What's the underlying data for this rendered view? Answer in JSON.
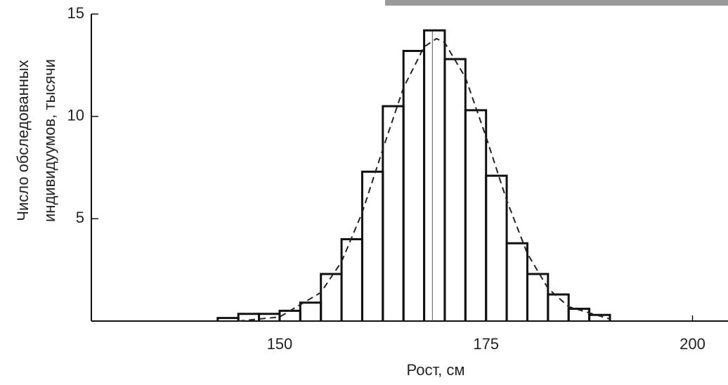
{
  "chart_data": {
    "type": "histogram",
    "x_label": "Рост, см",
    "y_label": [
      "Число обследованных",
      "индивидуумов, тысячи"
    ],
    "bins": [
      142.5,
      145,
      147.5,
      150,
      152.5,
      155,
      157.5,
      160,
      162.5,
      165,
      167.5,
      170,
      172.5,
      175,
      177.5,
      180,
      182.5,
      185,
      187.5,
      190
    ],
    "values": [
      0.15,
      0.35,
      0.35,
      0.5,
      0.9,
      2.3,
      4.0,
      7.3,
      10.5,
      13.2,
      14.2,
      12.8,
      10.3,
      7.1,
      3.8,
      2.3,
      1.3,
      0.6,
      0.3
    ],
    "color": "#111111",
    "curve": {
      "x": [
        145,
        150,
        155,
        157.5,
        160,
        162.5,
        165,
        167.5,
        169,
        170,
        172.5,
        175,
        177.5,
        180,
        182.5,
        185,
        190
      ],
      "values": [
        0.0,
        0.2,
        1.4,
        2.9,
        5.3,
        8.4,
        11.4,
        13.4,
        13.8,
        13.6,
        11.9,
        9.0,
        5.9,
        3.3,
        1.6,
        0.7,
        0.1
      ],
      "dashed": true
    },
    "mean_line": 168.5,
    "xlim": [
      127.2,
      204.3
    ],
    "ylim": [
      0,
      15
    ],
    "xticks": [
      150,
      175,
      200
    ],
    "yticks": [
      5,
      10,
      15
    ]
  }
}
